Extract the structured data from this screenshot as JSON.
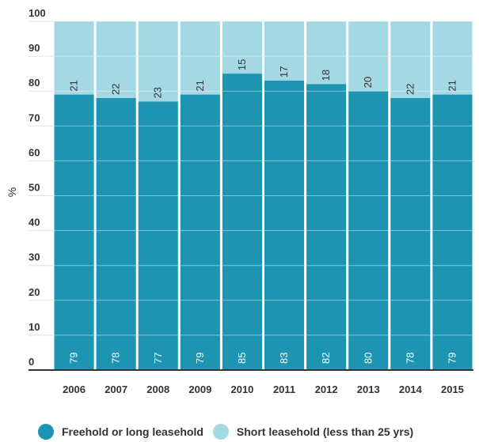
{
  "colors": {
    "freehold": "#1d94b2",
    "short": "#a4d8e3",
    "axis": "#333333",
    "grid_on_bar": "#ffffff"
  },
  "legend": {
    "freehold_label": "Freehold or long leasehold",
    "short_label": "Short leasehold (less than 25 yrs)"
  },
  "chart_data": {
    "type": "bar",
    "stacked": true,
    "categories": [
      "2006",
      "2007",
      "2008",
      "2009",
      "2010",
      "2011",
      "2012",
      "2013",
      "2014",
      "2015"
    ],
    "series": [
      {
        "name": "Freehold or long leasehold",
        "values": [
          79,
          78,
          77,
          79,
          85,
          83,
          82,
          80,
          78,
          79
        ]
      },
      {
        "name": "Short leasehold (less than 25 yrs)",
        "values": [
          21,
          22,
          23,
          21,
          15,
          17,
          18,
          20,
          22,
          21
        ]
      }
    ],
    "ylabel": "%",
    "xlabel": "",
    "ylim": [
      0,
      100
    ],
    "yticks": [
      0,
      10,
      20,
      30,
      40,
      50,
      60,
      70,
      80,
      90,
      100
    ],
    "grid": true,
    "legend_position": "bottom"
  }
}
